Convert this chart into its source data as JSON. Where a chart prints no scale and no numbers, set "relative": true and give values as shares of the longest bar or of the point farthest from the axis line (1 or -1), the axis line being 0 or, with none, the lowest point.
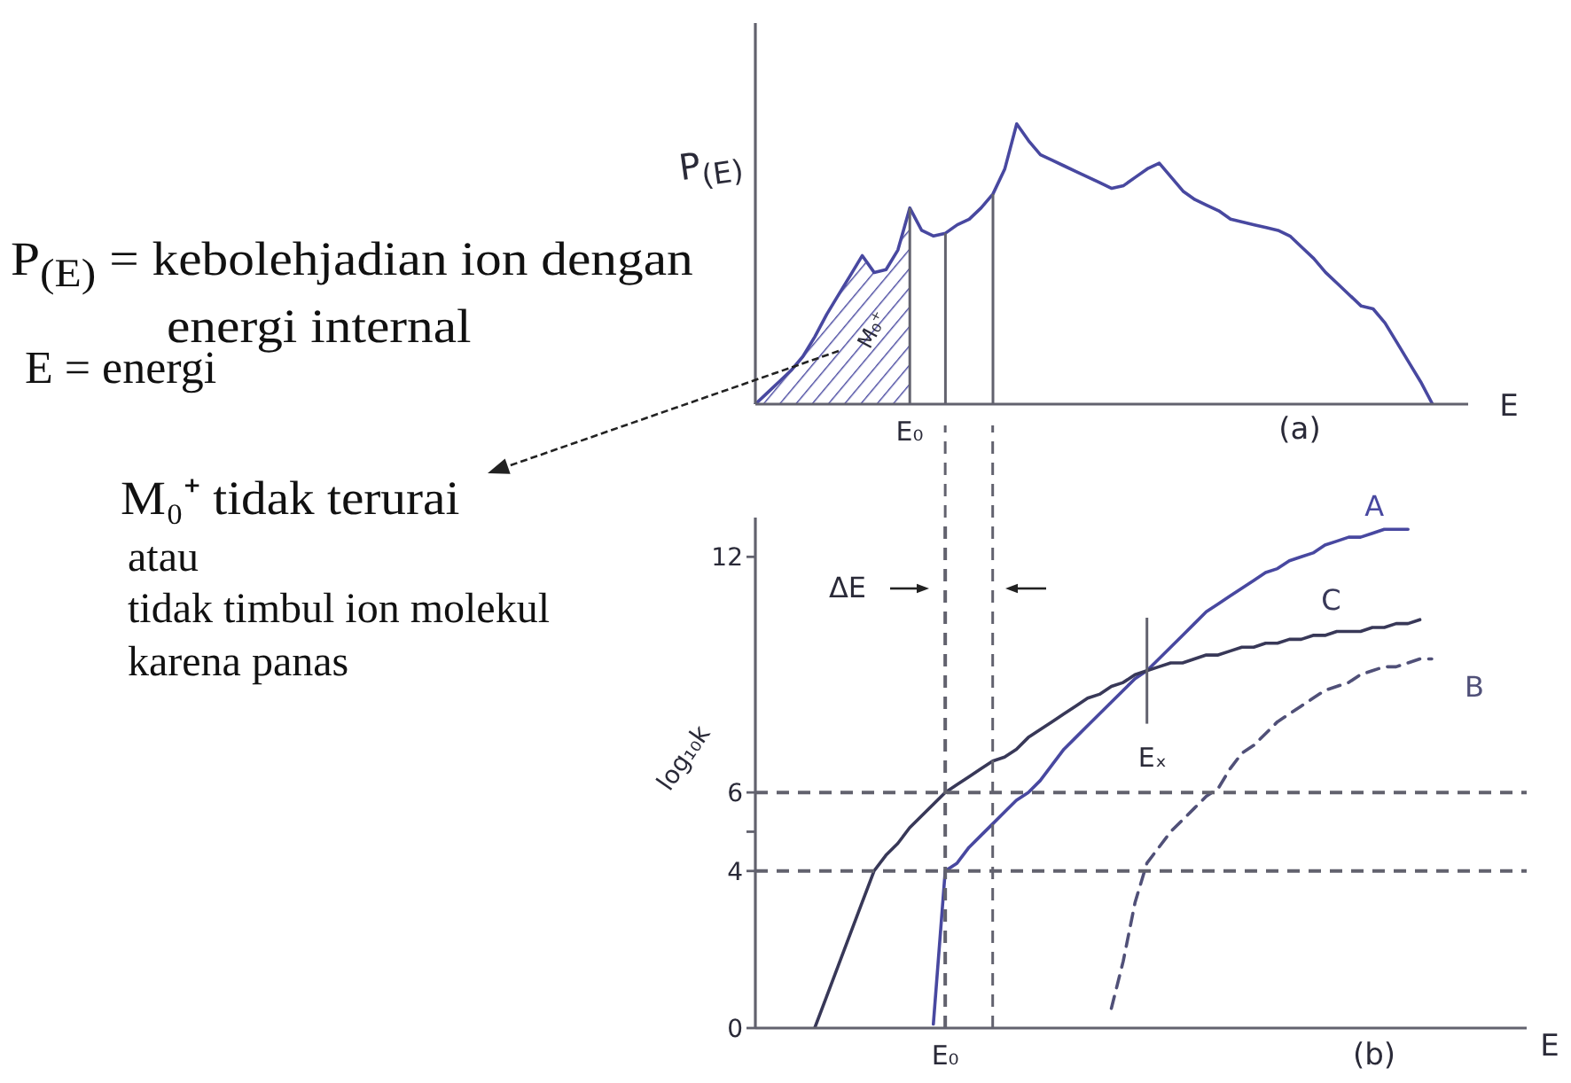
{
  "chart_data": [
    {
      "type": "line",
      "xlabel": "E",
      "ylabel": "P$_{(E)}$",
      "relative": true,
      "marker": "none",
      "categories": [
        null,
        null,
        null,
        null,
        null,
        null,
        null,
        null,
        null,
        null,
        null,
        null,
        null,
        null,
        null,
        null,
        null,
        null,
        null,
        null,
        null,
        null,
        null,
        null,
        null,
        null,
        null,
        null,
        null,
        null,
        null,
        null,
        null,
        null,
        null,
        null,
        null,
        null,
        null,
        null,
        null,
        null,
        null,
        null,
        null,
        null,
        null,
        null,
        null,
        null,
        null,
        null,
        null,
        null,
        null,
        null,
        null,
        null,
        null,
        null,
        null
      ],
      "series": [
        {
          "color": "#4848a0",
          "values": [
            0,
            0.04,
            0.08,
            0.12,
            0.17,
            0.24,
            0.32,
            0.39,
            0.46,
            0.53,
            0.47,
            0.48,
            0.55,
            0.7,
            0.62,
            0.6,
            0.61,
            0.64,
            0.66,
            0.7,
            0.75,
            0.84,
            1,
            0.94,
            0.89,
            0.87,
            0.85,
            0.83,
            0.81,
            0.79,
            0.77,
            0.78,
            0.81,
            0.84,
            0.86,
            0.81,
            0.76,
            0.73,
            0.71,
            0.69,
            0.66,
            0.65,
            0.64,
            0.63,
            0.62,
            0.6,
            0.56,
            0.52,
            0.47,
            0.43,
            0.39,
            0.35,
            0.34,
            0.29,
            0.22,
            0.15,
            0.08,
            0,
            null,
            null,
            null
          ]
        },
        {
          "type": "area",
          "color": "#4848a0",
          "values": [
            0,
            0.04,
            0.08,
            0.12,
            0.17,
            0.24,
            0.32,
            0.39,
            0.46,
            0.53,
            0.47,
            0.48,
            0.55,
            0.7,
            null,
            null,
            null,
            null,
            null,
            null,
            null,
            null,
            null,
            null,
            null,
            null,
            null,
            null,
            null,
            null,
            null,
            null,
            null,
            null,
            null,
            null,
            null,
            null,
            null,
            null,
            null,
            null,
            null,
            null,
            null,
            null,
            null,
            null,
            null,
            null,
            null,
            null,
            null,
            null,
            null,
            null,
            null,
            null,
            null,
            null,
            null
          ]
        }
      ],
      "annotations": [
        "P$_{(E)}$ = kebolehjadian ion dengan energi internal",
        "E = energi",
        "M₀⁺",
        "M₀⁺ tidak terurai",
        "atau",
        "tidak timbul ion molekul",
        "karena panas",
        "(a)",
        "E₀"
      ]
    },
    {
      "type": "line",
      "xlabel": "E",
      "ylabel": "log₁₀k",
      "marker": "none",
      "ylim": [
        0,
        13
      ],
      "yticks": [
        0,
        4,
        {
          "value": 5,
          "label": null
        },
        6,
        12
      ],
      "categories": [
        null,
        null,
        null,
        null,
        null,
        null,
        null,
        null,
        null,
        null,
        null,
        null,
        null,
        null,
        null,
        null,
        "E₀",
        null,
        null,
        null,
        null,
        null,
        null,
        null,
        null,
        null,
        null,
        null,
        null,
        null,
        null,
        null,
        null,
        null,
        null,
        null,
        null,
        null,
        null,
        null,
        null,
        null,
        null,
        null,
        null,
        null,
        null,
        null,
        null,
        null,
        null,
        null,
        null,
        null,
        null,
        null,
        null,
        null,
        null,
        null,
        null,
        null,
        null,
        null,
        null,
        null
      ],
      "series": [
        {
          "name": "A",
          "color": "#4848a0",
          "values": [
            null,
            null,
            null,
            null,
            null,
            null,
            null,
            null,
            null,
            null,
            null,
            null,
            null,
            null,
            null,
            0.1,
            4,
            4.2,
            4.6,
            4.9,
            5.2,
            5.5,
            5.8,
            6,
            6.3,
            6.7,
            7.1,
            7.4,
            7.7,
            8,
            8.3,
            8.6,
            8.9,
            9.1,
            9.4,
            9.7,
            10,
            10.3,
            10.6,
            10.8,
            11,
            11.2,
            11.4,
            11.6,
            11.7,
            11.9,
            12,
            12.1,
            12.3,
            12.4,
            12.5,
            12.5,
            12.6,
            12.7,
            12.7,
            12.7,
            null,
            null,
            null,
            null,
            null,
            null,
            null,
            null,
            null,
            null
          ]
        },
        {
          "name": "B",
          "color": "#505078",
          "line_style": "dashed",
          "values": [
            null,
            null,
            null,
            null,
            null,
            null,
            null,
            null,
            null,
            null,
            null,
            null,
            null,
            null,
            null,
            null,
            null,
            null,
            null,
            null,
            null,
            null,
            null,
            null,
            null,
            null,
            null,
            null,
            null,
            null,
            0.5,
            1.7,
            3.2,
            4.2,
            4.6,
            5,
            5.3,
            5.6,
            5.9,
            6.1,
            6.6,
            7,
            7.2,
            7.5,
            7.8,
            8,
            8.2,
            8.4,
            8.6,
            8.7,
            8.8,
            9,
            9.1,
            9.2,
            9.2,
            9.3,
            9.4,
            9.4,
            null,
            null,
            null,
            null,
            null,
            null,
            null,
            null
          ]
        },
        {
          "name": "C",
          "color": "#383858",
          "values": [
            null,
            null,
            null,
            null,
            null,
            0,
            0.8,
            1.6,
            2.4,
            3.2,
            4,
            4.4,
            4.7,
            5.1,
            5.4,
            5.7,
            6,
            6.2,
            6.4,
            6.6,
            6.8,
            6.9,
            7.1,
            7.4,
            7.6,
            7.8,
            8,
            8.2,
            8.4,
            8.5,
            8.7,
            8.8,
            9,
            9.1,
            9.2,
            9.3,
            9.3,
            9.4,
            9.5,
            9.5,
            9.6,
            9.7,
            9.7,
            9.8,
            9.8,
            9.9,
            9.9,
            10,
            10,
            10.1,
            10.1,
            10.1,
            10.2,
            10.2,
            10.3,
            10.3,
            10.4,
            null,
            null,
            null,
            null,
            null,
            null,
            null,
            null,
            null
          ]
        }
      ],
      "ref_lines": [
        {
          "axis": "x",
          "value": "E₀",
          "line_style": "dashed"
        },
        {
          "axis": "y",
          "value": 6,
          "line_style": "dashed"
        },
        {
          "axis": "y",
          "value": 4,
          "line_style": "dashed"
        }
      ],
      "annotations": [
        "ΔE",
        "Eₓ",
        "(b)"
      ]
    }
  ]
}
